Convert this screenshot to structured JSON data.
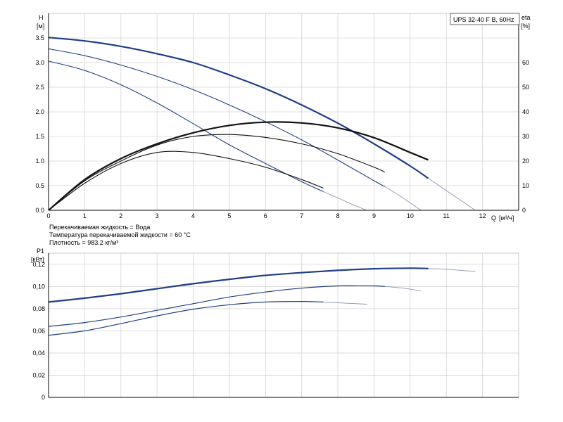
{
  "chart_data": [
    {
      "type": "line",
      "title": "UPS 32-40 F B, 60Hz",
      "ylabel": "H",
      "yunit": "[м]",
      "y2label": "eta",
      "y2unit": "[%]",
      "xlabel": "Q",
      "xunit": "[м³/ч]",
      "xlim": [
        0,
        13
      ],
      "ylim": [
        0,
        4.0
      ],
      "y2lim": [
        0,
        80
      ],
      "xticks": [
        0,
        1,
        2,
        3,
        4,
        5,
        6,
        7,
        8,
        9,
        10,
        11,
        12
      ],
      "yticks": [
        0,
        0.5,
        1.0,
        1.5,
        2.0,
        2.5,
        3.0,
        3.5
      ],
      "ytick_labels": [
        "0.0",
        "0.5",
        "1.0",
        "1.5",
        "2.0",
        "2.5",
        "3.0",
        "3.5"
      ],
      "y2ticks": [
        0,
        10,
        20,
        30,
        40,
        50,
        60
      ],
      "grid": true,
      "notes": [
        "Перекачиваемая жидкость = Вода",
        "Температура перекачиваемой жидкости = 60 °C",
        "Плотность = 983.2 кг/м³"
      ],
      "series": [
        {
          "axis": "H",
          "style": "bold",
          "x": [
            0,
            1,
            2,
            3,
            4,
            5,
            6,
            7,
            8,
            9,
            10,
            10.5
          ],
          "y": [
            3.51,
            3.44,
            3.33,
            3.18,
            3.0,
            2.75,
            2.47,
            2.14,
            1.77,
            1.35,
            0.9,
            0.65
          ],
          "x_ext": [
            10.5,
            11.0,
            11.5,
            11.8
          ],
          "y_ext": [
            0.65,
            0.4,
            0.15,
            0.0
          ]
        },
        {
          "axis": "H",
          "style": "normal",
          "x": [
            0,
            1,
            2,
            3,
            4,
            5,
            6,
            7,
            8,
            9,
            9.3
          ],
          "y": [
            3.28,
            3.14,
            2.95,
            2.72,
            2.45,
            2.14,
            1.8,
            1.43,
            1.02,
            0.6,
            0.48
          ],
          "x_ext": [
            9.3,
            9.7,
            10.0,
            10.3
          ],
          "y_ext": [
            0.48,
            0.3,
            0.15,
            0.0
          ]
        },
        {
          "axis": "H",
          "style": "normal",
          "x": [
            0,
            1,
            2,
            3,
            4,
            5,
            6,
            7,
            7.6
          ],
          "y": [
            3.03,
            2.84,
            2.55,
            2.18,
            1.76,
            1.33,
            0.95,
            0.58,
            0.38
          ],
          "x_ext": [
            7.6,
            8.0,
            8.4,
            8.8
          ],
          "y_ext": [
            0.38,
            0.25,
            0.12,
            0.0
          ]
        },
        {
          "axis": "eta",
          "style": "bold",
          "x": [
            0,
            1,
            2,
            3,
            4,
            5,
            6,
            7,
            8,
            9,
            10,
            10.5
          ],
          "y": [
            0,
            12.5,
            21.0,
            27.0,
            31.5,
            34.5,
            35.8,
            35.5,
            33.5,
            29.5,
            23.5,
            20.5
          ]
        },
        {
          "axis": "eta",
          "style": "normal",
          "x": [
            0,
            1,
            2,
            3,
            4,
            5,
            6,
            7,
            8,
            9,
            9.3
          ],
          "y": [
            0,
            12.0,
            20.0,
            26.5,
            30.0,
            30.8,
            29.6,
            27.0,
            23.0,
            17.5,
            15.5
          ]
        },
        {
          "axis": "eta",
          "style": "normal",
          "x": [
            0,
            1,
            2,
            3,
            4,
            5,
            6,
            7,
            7.6
          ],
          "y": [
            0,
            11.0,
            19.0,
            23.5,
            23.5,
            21.0,
            17.5,
            12.5,
            9.0
          ]
        }
      ]
    },
    {
      "type": "line",
      "ylabel": "P1",
      "yunit": "[кВт]",
      "xlim": [
        0,
        13
      ],
      "ylim": [
        0,
        0.13
      ],
      "yticks": [
        0,
        0.02,
        0.04,
        0.06,
        0.08,
        0.1,
        0.12
      ],
      "ytick_labels": [
        "0",
        "0,02",
        "0,04",
        "0,06",
        "0,08",
        "0,10",
        "0,12"
      ],
      "grid": true,
      "series": [
        {
          "style": "bold",
          "x": [
            0,
            1,
            2,
            3,
            4,
            5,
            6,
            7,
            8,
            9,
            10,
            10.5
          ],
          "y": [
            0.086,
            0.0895,
            0.0935,
            0.098,
            0.1025,
            0.1065,
            0.11,
            0.1125,
            0.1145,
            0.116,
            0.1165,
            0.1162
          ],
          "x_ext": [
            10.5,
            11.0,
            11.8
          ],
          "y_ext": [
            0.1162,
            0.1155,
            0.1135
          ]
        },
        {
          "style": "normal",
          "x": [
            0,
            1,
            2,
            3,
            4,
            5,
            6,
            7,
            8,
            9,
            9.3
          ],
          "y": [
            0.064,
            0.0675,
            0.0725,
            0.0785,
            0.0845,
            0.0905,
            0.095,
            0.0985,
            0.1005,
            0.1005,
            0.1
          ],
          "x_ext": [
            9.3,
            9.8,
            10.3
          ],
          "y_ext": [
            0.1,
            0.0985,
            0.096
          ]
        },
        {
          "style": "normal",
          "x": [
            0,
            1,
            2,
            3,
            4,
            5,
            6,
            7,
            7.6
          ],
          "y": [
            0.056,
            0.06,
            0.0665,
            0.0735,
            0.0795,
            0.0835,
            0.086,
            0.0865,
            0.086
          ],
          "x_ext": [
            7.6,
            8.2,
            8.8
          ],
          "y_ext": [
            0.086,
            0.085,
            0.084
          ]
        }
      ]
    }
  ]
}
